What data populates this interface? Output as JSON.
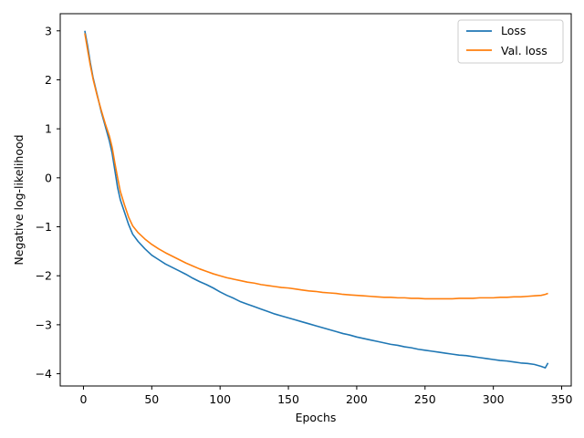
{
  "chart_data": {
    "type": "line",
    "title": "",
    "xlabel": "Epochs",
    "ylabel": "Negative log-likelihood",
    "xlim": [
      -17,
      357
    ],
    "ylim": [
      -4.25,
      3.35
    ],
    "xticks": [
      0,
      50,
      100,
      150,
      200,
      250,
      300,
      350
    ],
    "yticks": [
      -4,
      -3,
      -2,
      -1,
      0,
      1,
      2,
      3
    ],
    "grid": false,
    "legend_position": "top-right",
    "series": [
      {
        "name": "Loss",
        "color": "#1f77b4",
        "points": [
          [
            1,
            3.0
          ],
          [
            3,
            2.7
          ],
          [
            5,
            2.35
          ],
          [
            7,
            2.05
          ],
          [
            10,
            1.7
          ],
          [
            13,
            1.35
          ],
          [
            16,
            1.05
          ],
          [
            19,
            0.75
          ],
          [
            21,
            0.5
          ],
          [
            23,
            0.15
          ],
          [
            25,
            -0.2
          ],
          [
            27,
            -0.45
          ],
          [
            30,
            -0.7
          ],
          [
            33,
            -0.95
          ],
          [
            36,
            -1.15
          ],
          [
            40,
            -1.3
          ],
          [
            45,
            -1.45
          ],
          [
            50,
            -1.58
          ],
          [
            55,
            -1.67
          ],
          [
            60,
            -1.76
          ],
          [
            65,
            -1.83
          ],
          [
            70,
            -1.9
          ],
          [
            75,
            -1.97
          ],
          [
            80,
            -2.05
          ],
          [
            85,
            -2.12
          ],
          [
            90,
            -2.18
          ],
          [
            95,
            -2.25
          ],
          [
            100,
            -2.33
          ],
          [
            105,
            -2.4
          ],
          [
            110,
            -2.46
          ],
          [
            115,
            -2.53
          ],
          [
            120,
            -2.58
          ],
          [
            125,
            -2.63
          ],
          [
            130,
            -2.68
          ],
          [
            135,
            -2.73
          ],
          [
            140,
            -2.78
          ],
          [
            145,
            -2.82
          ],
          [
            150,
            -2.86
          ],
          [
            155,
            -2.9
          ],
          [
            160,
            -2.94
          ],
          [
            165,
            -2.98
          ],
          [
            170,
            -3.02
          ],
          [
            175,
            -3.06
          ],
          [
            180,
            -3.1
          ],
          [
            185,
            -3.14
          ],
          [
            190,
            -3.18
          ],
          [
            195,
            -3.21
          ],
          [
            200,
            -3.25
          ],
          [
            205,
            -3.28
          ],
          [
            210,
            -3.31
          ],
          [
            215,
            -3.34
          ],
          [
            220,
            -3.37
          ],
          [
            225,
            -3.4
          ],
          [
            230,
            -3.42
          ],
          [
            235,
            -3.45
          ],
          [
            240,
            -3.47
          ],
          [
            245,
            -3.5
          ],
          [
            250,
            -3.52
          ],
          [
            255,
            -3.54
          ],
          [
            260,
            -3.56
          ],
          [
            265,
            -3.58
          ],
          [
            270,
            -3.6
          ],
          [
            275,
            -3.62
          ],
          [
            280,
            -3.63
          ],
          [
            285,
            -3.65
          ],
          [
            290,
            -3.67
          ],
          [
            295,
            -3.69
          ],
          [
            300,
            -3.71
          ],
          [
            305,
            -3.73
          ],
          [
            310,
            -3.74
          ],
          [
            315,
            -3.76
          ],
          [
            320,
            -3.78
          ],
          [
            325,
            -3.79
          ],
          [
            330,
            -3.81
          ],
          [
            335,
            -3.85
          ],
          [
            338,
            -3.88
          ],
          [
            340,
            -3.78
          ]
        ]
      },
      {
        "name": "Val. loss",
        "color": "#ff7f0e",
        "points": [
          [
            1,
            2.95
          ],
          [
            3,
            2.62
          ],
          [
            5,
            2.3
          ],
          [
            7,
            2.02
          ],
          [
            10,
            1.68
          ],
          [
            13,
            1.38
          ],
          [
            16,
            1.1
          ],
          [
            19,
            0.85
          ],
          [
            21,
            0.62
          ],
          [
            23,
            0.3
          ],
          [
            25,
            0.0
          ],
          [
            27,
            -0.28
          ],
          [
            30,
            -0.55
          ],
          [
            33,
            -0.8
          ],
          [
            36,
            -0.98
          ],
          [
            40,
            -1.12
          ],
          [
            45,
            -1.25
          ],
          [
            50,
            -1.36
          ],
          [
            55,
            -1.45
          ],
          [
            60,
            -1.53
          ],
          [
            65,
            -1.6
          ],
          [
            70,
            -1.67
          ],
          [
            75,
            -1.74
          ],
          [
            80,
            -1.8
          ],
          [
            85,
            -1.86
          ],
          [
            90,
            -1.91
          ],
          [
            95,
            -1.96
          ],
          [
            100,
            -2.0
          ],
          [
            105,
            -2.04
          ],
          [
            110,
            -2.07
          ],
          [
            115,
            -2.1
          ],
          [
            120,
            -2.13
          ],
          [
            125,
            -2.15
          ],
          [
            130,
            -2.18
          ],
          [
            135,
            -2.2
          ],
          [
            140,
            -2.22
          ],
          [
            145,
            -2.24
          ],
          [
            150,
            -2.25
          ],
          [
            155,
            -2.27
          ],
          [
            160,
            -2.29
          ],
          [
            165,
            -2.31
          ],
          [
            170,
            -2.32
          ],
          [
            175,
            -2.34
          ],
          [
            180,
            -2.35
          ],
          [
            185,
            -2.36
          ],
          [
            190,
            -2.38
          ],
          [
            195,
            -2.39
          ],
          [
            200,
            -2.4
          ],
          [
            205,
            -2.41
          ],
          [
            210,
            -2.42
          ],
          [
            215,
            -2.43
          ],
          [
            220,
            -2.44
          ],
          [
            225,
            -2.44
          ],
          [
            230,
            -2.45
          ],
          [
            235,
            -2.45
          ],
          [
            240,
            -2.46
          ],
          [
            245,
            -2.46
          ],
          [
            250,
            -2.47
          ],
          [
            255,
            -2.47
          ],
          [
            260,
            -2.47
          ],
          [
            265,
            -2.47
          ],
          [
            270,
            -2.47
          ],
          [
            275,
            -2.46
          ],
          [
            280,
            -2.46
          ],
          [
            285,
            -2.46
          ],
          [
            290,
            -2.45
          ],
          [
            295,
            -2.45
          ],
          [
            300,
            -2.45
          ],
          [
            305,
            -2.44
          ],
          [
            310,
            -2.44
          ],
          [
            315,
            -2.43
          ],
          [
            320,
            -2.43
          ],
          [
            325,
            -2.42
          ],
          [
            330,
            -2.41
          ],
          [
            335,
            -2.4
          ],
          [
            338,
            -2.38
          ],
          [
            340,
            -2.36
          ]
        ]
      }
    ]
  }
}
